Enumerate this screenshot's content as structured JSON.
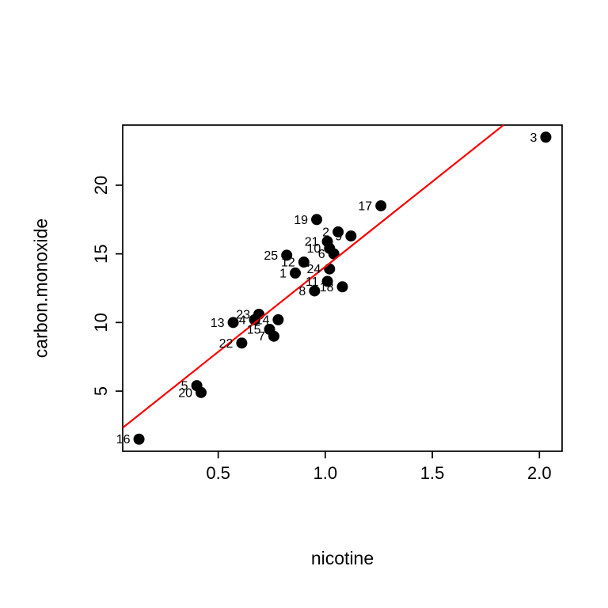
{
  "chart_data": {
    "type": "scatter",
    "title": "",
    "xlabel": "nicotine",
    "ylabel": "carbon.monoxide",
    "xlim": [
      0.054,
      2.106
    ],
    "ylim": [
      0.62,
      24.38
    ],
    "x_ticks": [
      "0.5",
      "1.0",
      "1.5",
      "2.0"
    ],
    "y_ticks": [
      "5",
      "10",
      "15",
      "20"
    ],
    "grid": false,
    "legend": "none",
    "point_color": "#000000",
    "point_label_position": "left",
    "regression_line": {
      "intercept": 1.66,
      "slope": 12.4,
      "color": "#ff0000"
    },
    "points": [
      {
        "label": "1",
        "x": 0.86,
        "y": 13.6
      },
      {
        "label": "2",
        "x": 1.06,
        "y": 16.6
      },
      {
        "label": "3",
        "x": 2.03,
        "y": 23.5
      },
      {
        "label": "4",
        "x": 0.67,
        "y": 10.2
      },
      {
        "label": "5",
        "x": 0.4,
        "y": 5.4
      },
      {
        "label": "6",
        "x": 1.04,
        "y": 15.0
      },
      {
        "label": "7",
        "x": 0.76,
        "y": 9.0
      },
      {
        "label": "8",
        "x": 0.95,
        "y": 12.3
      },
      {
        "label": "9",
        "x": 1.12,
        "y": 16.3
      },
      {
        "label": "10",
        "x": 1.02,
        "y": 15.4
      },
      {
        "label": "11",
        "x": 1.01,
        "y": 13.0
      },
      {
        "label": "12",
        "x": 0.9,
        "y": 14.4
      },
      {
        "label": "13",
        "x": 0.57,
        "y": 10.0
      },
      {
        "label": "14",
        "x": 0.78,
        "y": 10.2
      },
      {
        "label": "15",
        "x": 0.74,
        "y": 9.5
      },
      {
        "label": "16",
        "x": 0.13,
        "y": 1.5
      },
      {
        "label": "17",
        "x": 1.26,
        "y": 18.5
      },
      {
        "label": "18",
        "x": 1.08,
        "y": 12.6
      },
      {
        "label": "19",
        "x": 0.96,
        "y": 17.5
      },
      {
        "label": "20",
        "x": 0.42,
        "y": 4.9
      },
      {
        "label": "21",
        "x": 1.01,
        "y": 15.9
      },
      {
        "label": "22",
        "x": 0.61,
        "y": 8.5
      },
      {
        "label": "23",
        "x": 0.69,
        "y": 10.6
      },
      {
        "label": "24",
        "x": 1.02,
        "y": 13.9
      },
      {
        "label": "25",
        "x": 0.82,
        "y": 14.9
      }
    ]
  }
}
